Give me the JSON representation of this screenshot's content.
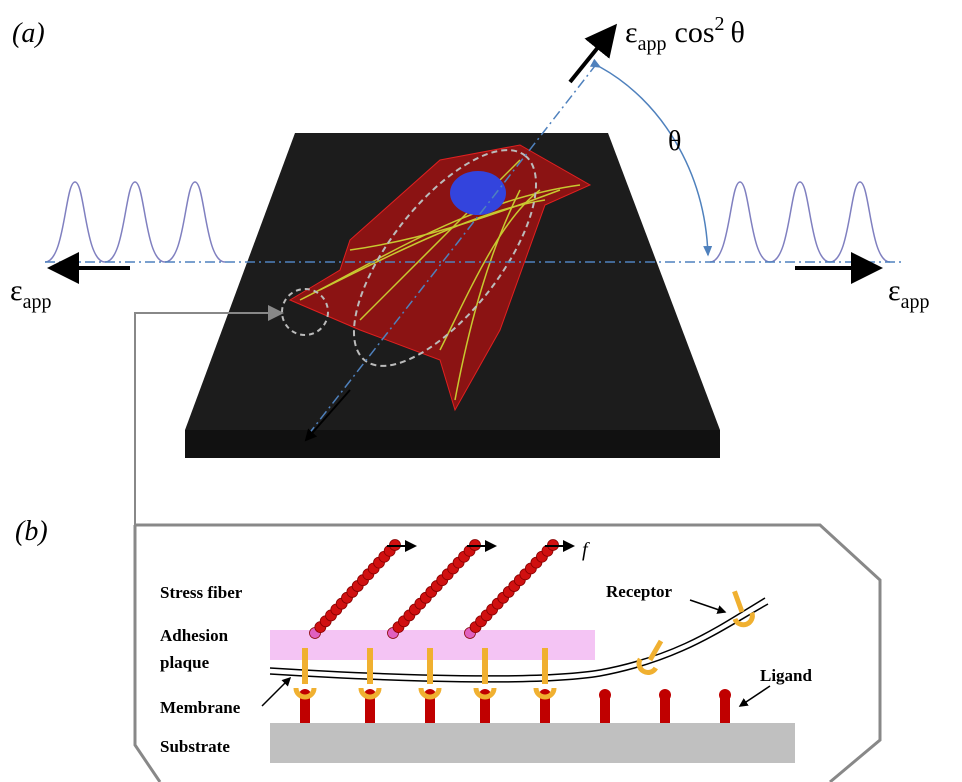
{
  "panel_a": {
    "label": "(a)",
    "rotated_strain": {
      "symbol": "ε",
      "subscript": "app",
      "function": "cos",
      "superscript": "2",
      "angle": "θ"
    },
    "angle": "θ",
    "strain_left": {
      "symbol": "ε",
      "subscript": "app"
    },
    "strain_right": {
      "symbol": "ε",
      "subscript": "app"
    }
  },
  "panel_b": {
    "label": "(b)",
    "force": "f",
    "labels": {
      "stress_fiber": "Stress fiber",
      "adhesion_plaque": [
        "Adhesion",
        "plaque"
      ],
      "membrane": "Membrane",
      "substrate": "Substrate",
      "receptor": "Receptor",
      "ligand": "Ligand"
    }
  }
}
